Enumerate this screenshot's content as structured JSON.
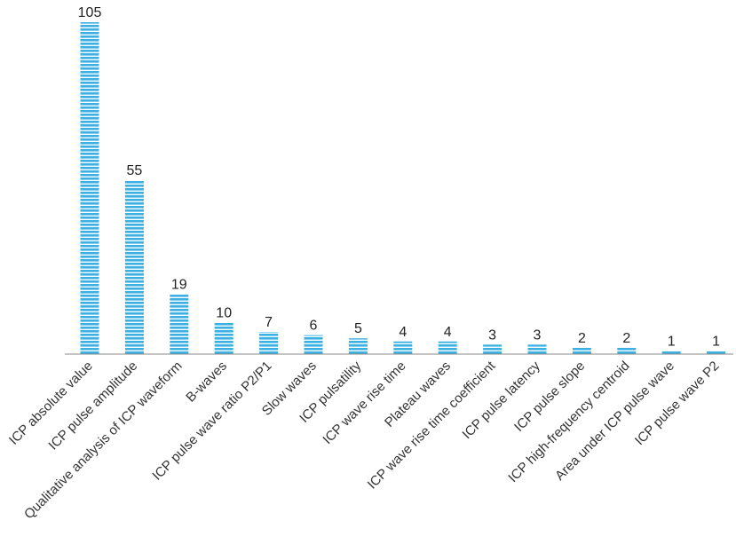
{
  "chart_data": {
    "type": "bar",
    "title": "",
    "xlabel": "",
    "ylabel": "",
    "ylim": [
      0,
      105
    ],
    "grid": false,
    "legend": "none",
    "bar_color": "#3bb0e3",
    "bar_pattern": "horizontal-stripes",
    "categories": [
      "ICP absolute value",
      "ICP pulse amplitude",
      "Qualitative analysis of ICP waveform",
      "B-waves",
      "ICP pulse wave ratio P2/P1",
      "Slow waves",
      "ICP pulsatility",
      "ICP wave rise time",
      "Plateau waves",
      "ICP wave rise time coefficient",
      "ICP pulse latency",
      "ICP pulse slope",
      "ICP high-frequency centroid",
      "Area under ICP pulse wave",
      "ICP pulse wave P2"
    ],
    "values": [
      105,
      55,
      19,
      10,
      7,
      6,
      5,
      4,
      4,
      3,
      3,
      2,
      2,
      1,
      1
    ]
  }
}
